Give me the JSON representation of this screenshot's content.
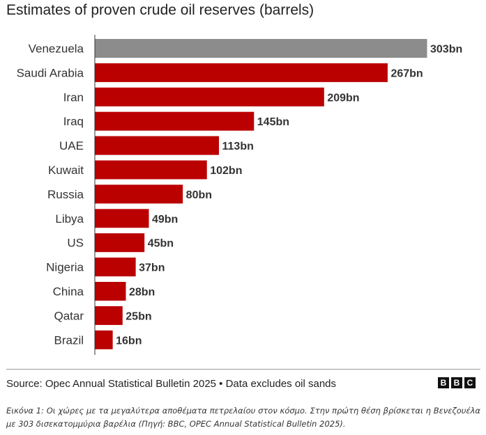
{
  "chart_data": {
    "type": "bar",
    "orientation": "horizontal",
    "title": "Estimates of proven crude oil reserves (barrels)",
    "categories": [
      "Venezuela",
      "Saudi Arabia",
      "Iran",
      "Iraq",
      "UAE",
      "Kuwait",
      "Russia",
      "Libya",
      "US",
      "Nigeria",
      "China",
      "Qatar",
      "Brazil"
    ],
    "values": [
      303,
      267,
      209,
      145,
      113,
      102,
      80,
      49,
      45,
      37,
      28,
      25,
      16
    ],
    "value_labels": [
      "303bn",
      "267bn",
      "209bn",
      "145bn",
      "113bn",
      "102bn",
      "80bn",
      "49bn",
      "45bn",
      "37bn",
      "28bn",
      "25bn",
      "16bn"
    ],
    "unit": "bn",
    "xlim": [
      0,
      303
    ],
    "grid": false,
    "colors": {
      "highlight": "#8c8c8c",
      "default": "#bb0000"
    },
    "highlight_category": "Venezuela"
  },
  "source": "Source: Opec Annual Statistical Bulletin 2025 • Data excludes oil sands",
  "logo": {
    "letters": [
      "B",
      "B",
      "C"
    ]
  },
  "caption": "Εικόνα 1: Οι χώρες με τα μεγαλύτερα αποθέματα πετρελαίου στον κόσμο. Στην πρώτη θέση βρίσκεται η Βενεζουέλα με 303 δισεκατομμύρια βαρέλια (Πηγή: BBC, OPEC Annual Statistical Bulletin 2025)."
}
